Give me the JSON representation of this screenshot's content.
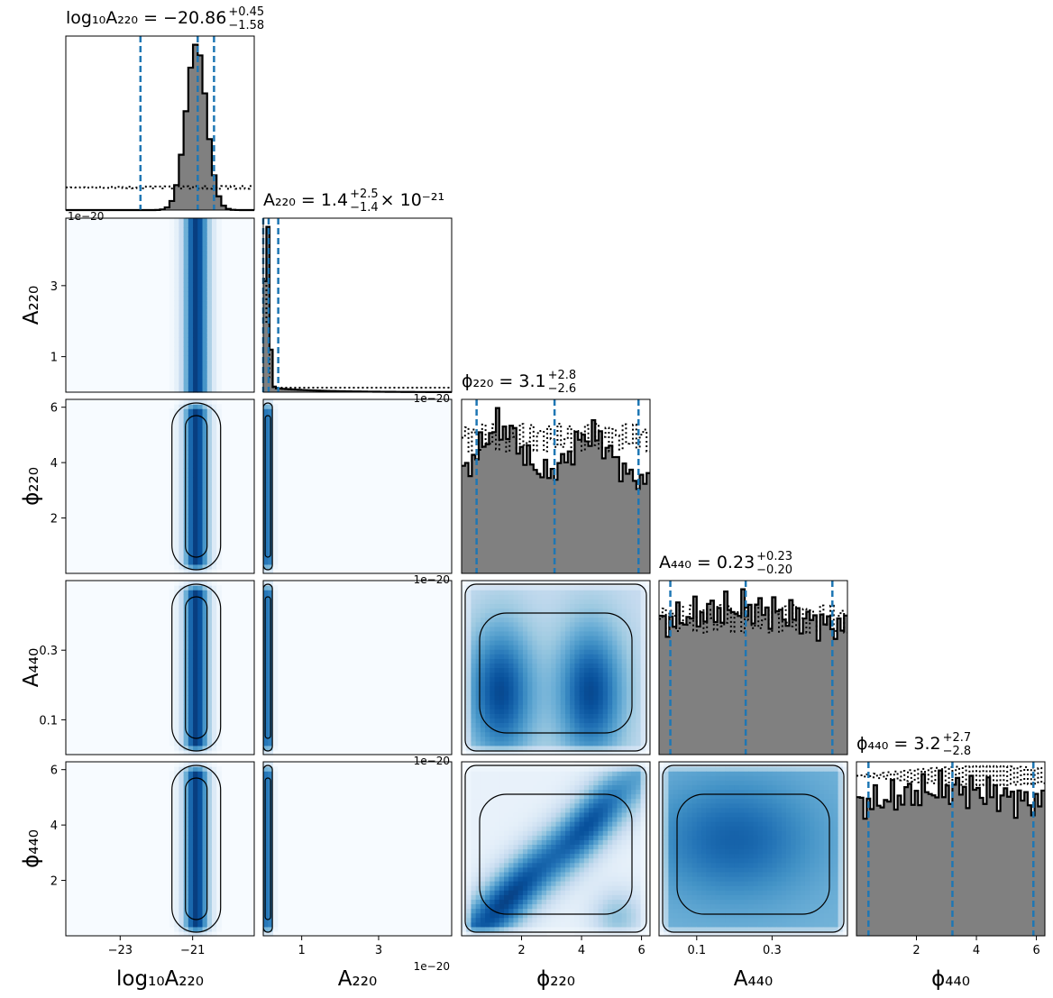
{
  "chart_data": {
    "type": "corner",
    "parameters": [
      {
        "key": "log10A220",
        "label": "log₁₀A₂₂₀",
        "title": {
          "main": "log₁₀A₂₂₀ = −20.86",
          "sup": "+0.45",
          "sub": "−1.58",
          "suffix": ""
        },
        "median": -20.86,
        "lo": -22.44,
        "hi": -20.41,
        "range": [
          -24.5,
          -19.3
        ],
        "ticks": [
          -23,
          -21
        ],
        "tick_labels": [
          "−23",
          "−21"
        ],
        "offset_text": "1e−20",
        "prior": "uniform"
      },
      {
        "key": "A220",
        "label": "A₂₂₀",
        "title": {
          "main": "A₂₂₀ = 1.4",
          "sup": "+2.5",
          "sub": "−1.4",
          "suffix": " × 10⁻²¹"
        },
        "median": 0.14,
        "lo": 0.0,
        "hi": 0.39,
        "range": [
          0,
          4.9
        ],
        "ticks": [
          1,
          3
        ],
        "tick_labels": [
          "1",
          "3"
        ],
        "offset_text": "1e−20",
        "prior": "log-uniform"
      },
      {
        "key": "phi220",
        "label": "ϕ₂₂₀",
        "title": {
          "main": "ϕ₂₂₀ = 3.1",
          "sup": "+2.8",
          "sub": "−2.6",
          "suffix": ""
        },
        "median": 3.1,
        "lo": 0.5,
        "hi": 5.9,
        "range": [
          0,
          6.283
        ],
        "ticks": [
          2,
          4,
          6
        ],
        "tick_labels": [
          "2",
          "4",
          "6"
        ],
        "offset_text": "",
        "prior": "uniform"
      },
      {
        "key": "A440",
        "label": "A₄₄₀",
        "title": {
          "main": "A₄₄₀ = 0.23",
          "sup": "+0.23",
          "sub": "−0.20",
          "suffix": ""
        },
        "median": 0.23,
        "lo": 0.03,
        "hi": 0.46,
        "range": [
          0,
          0.5
        ],
        "ticks": [
          0.1,
          0.3
        ],
        "tick_labels": [
          "0.1",
          "0.3"
        ],
        "offset_text": "",
        "prior": "uniform"
      },
      {
        "key": "phi440",
        "label": "ϕ₄₄₀",
        "title": {
          "main": "ϕ₄₄₀ = 3.2",
          "sup": "+2.7",
          "sub": "−2.8",
          "suffix": ""
        },
        "median": 3.2,
        "lo": 0.4,
        "hi": 5.9,
        "range": [
          0,
          6.283
        ],
        "ticks": [
          2,
          4,
          6
        ],
        "tick_labels": [
          "2",
          "4",
          "6"
        ],
        "offset_text": "",
        "prior": "uniform"
      }
    ],
    "contour_levels": [
      "50%",
      "90%"
    ],
    "histogram_style": {
      "posterior": "filled gray, black step outline",
      "prior": "dotted black step"
    },
    "quantile_line_color": "#1f77b4",
    "density_colormap": "Blues",
    "colors": {
      "fill": "#808080",
      "line": "#000000",
      "quantile": "#1f77b4",
      "density_low": "#f7fbff",
      "density_high": "#08306b"
    }
  }
}
